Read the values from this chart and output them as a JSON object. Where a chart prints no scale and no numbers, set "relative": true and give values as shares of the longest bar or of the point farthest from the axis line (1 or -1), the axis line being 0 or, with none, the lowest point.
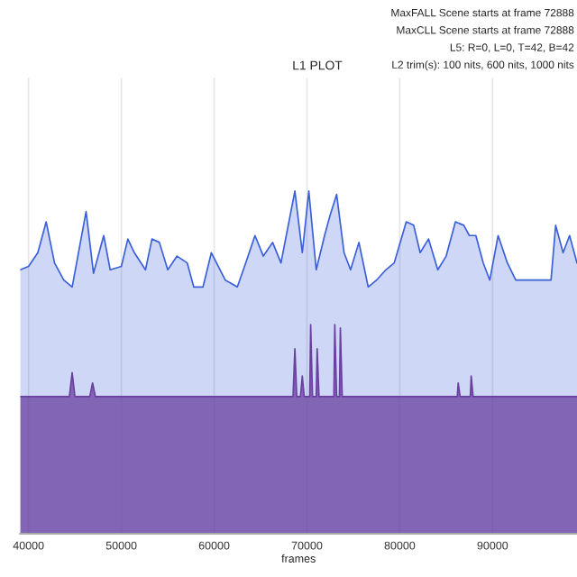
{
  "chart_data": {
    "type": "area",
    "title": "L1 PLOT",
    "xlabel": "frames",
    "relative": true,
    "annotations": [
      "MaxFALL Scene starts at frame 72888",
      "MaxCLL Scene starts at frame 72888",
      "L5: R=0, L=0, T=42, B=42",
      "L2 trim(s): 100 nits, 600 nits, 1000 nits"
    ],
    "xlim": [
      39100,
      99100
    ],
    "xticks": [
      40000,
      50000,
      60000,
      70000,
      80000,
      90000
    ],
    "grid": "x",
    "legend": false,
    "series": [
      {
        "color": "#3a5fd9",
        "x": [
          39100,
          40000,
          41000,
          41900,
          42800,
          43800,
          44700,
          46200,
          47000,
          48100,
          48800,
          50000,
          50700,
          51400,
          52600,
          53300,
          54100,
          55000,
          56000,
          57100,
          57800,
          58800,
          59700,
          61200,
          62500,
          63400,
          64400,
          65300,
          66300,
          67200,
          68700,
          69500,
          70200,
          71000,
          71900,
          72500,
          73200,
          74000,
          74700,
          75600,
          76600,
          77500,
          78500,
          79400,
          80700,
          81500,
          82200,
          83100,
          84100,
          85000,
          86000,
          86900,
          87500,
          88200,
          89000,
          89700,
          90600,
          91600,
          92500,
          93500,
          95000,
          96300,
          96800,
          97600,
          98300,
          99100
        ],
        "values": [
          0.77,
          0.78,
          0.82,
          0.91,
          0.79,
          0.74,
          0.72,
          0.94,
          0.76,
          0.87,
          0.77,
          0.78,
          0.86,
          0.82,
          0.77,
          0.86,
          0.85,
          0.77,
          0.81,
          0.79,
          0.72,
          0.72,
          0.82,
          0.74,
          0.72,
          0.79,
          0.87,
          0.81,
          0.85,
          0.79,
          1,
          0.82,
          1,
          0.77,
          0.87,
          0.93,
          0.99,
          0.82,
          0.77,
          0.85,
          0.72,
          0.74,
          0.77,
          0.79,
          0.91,
          0.9,
          0.82,
          0.86,
          0.77,
          0.81,
          0.91,
          0.9,
          0.87,
          0.87,
          0.79,
          0.74,
          0.87,
          0.79,
          0.74,
          0.74,
          0.74,
          0.74,
          0.9,
          0.82,
          0.87,
          0.79
        ]
      },
      {
        "color": "#6a3fa0",
        "x": [
          39100,
          44400,
          44700,
          45000,
          46600,
          46900,
          47200,
          68500,
          68700,
          68900,
          69300,
          69500,
          69700,
          70300,
          70400,
          70600,
          71000,
          71100,
          71300,
          72900,
          73000,
          73200,
          73500,
          73600,
          73800,
          86200,
          86300,
          86500,
          87600,
          87700,
          87900,
          99100
        ],
        "values": [
          0.4,
          0.4,
          0.47,
          0.4,
          0.4,
          0.44,
          0.4,
          0.4,
          0.54,
          0.4,
          0.4,
          0.46,
          0.4,
          0.4,
          0.61,
          0.4,
          0.4,
          0.54,
          0.4,
          0.4,
          0.61,
          0.4,
          0.4,
          0.6,
          0.4,
          0.4,
          0.44,
          0.4,
          0.4,
          0.46,
          0.4,
          0.4
        ]
      }
    ]
  }
}
